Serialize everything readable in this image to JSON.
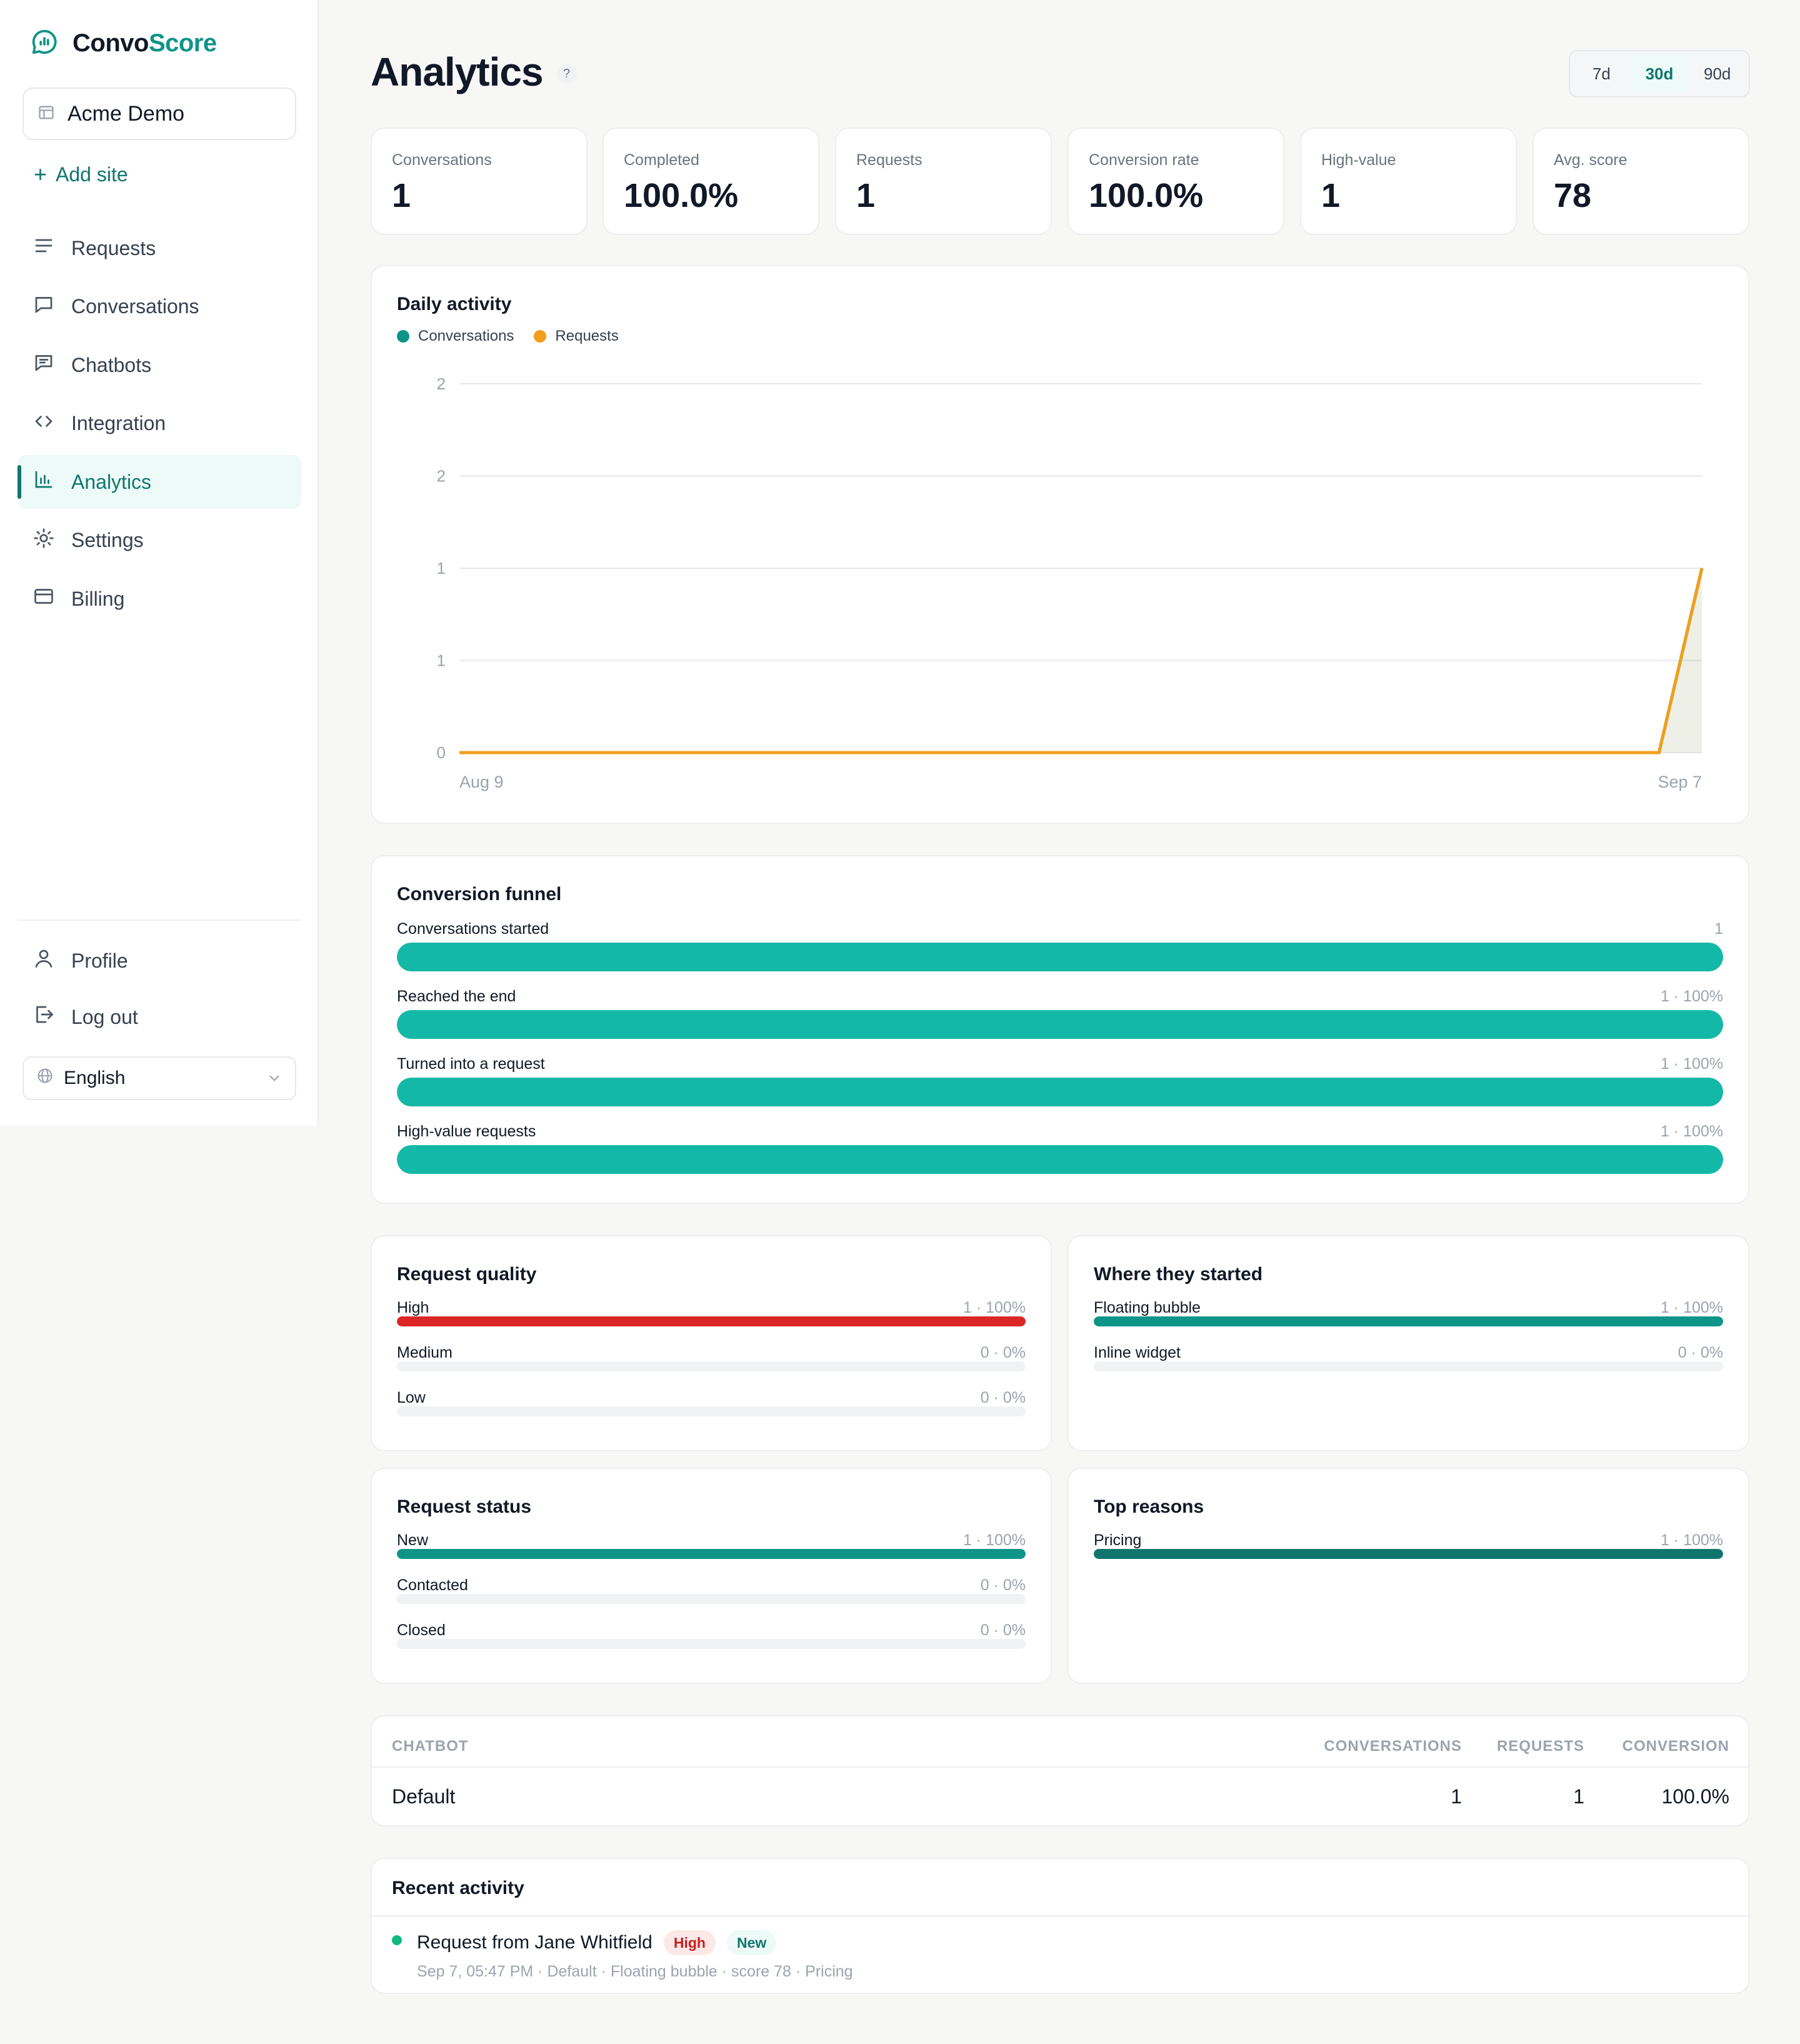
{
  "app": {
    "brand_part1": "Convo",
    "brand_part2": "Score",
    "brand_color": "#0f9488"
  },
  "sidebar": {
    "site": "Acme Demo",
    "add_site": "Add site",
    "items": [
      {
        "label": "Requests",
        "icon": "list-icon"
      },
      {
        "label": "Conversations",
        "icon": "message-icon"
      },
      {
        "label": "Chatbots",
        "icon": "chatbot-icon"
      },
      {
        "label": "Integration",
        "icon": "code-icon"
      },
      {
        "label": "Analytics",
        "icon": "bar-chart-icon",
        "active": true
      },
      {
        "label": "Settings",
        "icon": "gear-icon"
      },
      {
        "label": "Billing",
        "icon": "credit-card-icon"
      }
    ],
    "bottom_items": [
      {
        "label": "Profile",
        "icon": "user-icon"
      },
      {
        "label": "Log out",
        "icon": "logout-icon"
      }
    ],
    "language": "English"
  },
  "header": {
    "title": "Analytics",
    "help": "?",
    "ranges": [
      "7d",
      "30d",
      "90d"
    ],
    "active_range": "30d"
  },
  "stats": [
    {
      "label": "Conversations",
      "value": "1"
    },
    {
      "label": "Completed",
      "value": "100.0%"
    },
    {
      "label": "Requests",
      "value": "1"
    },
    {
      "label": "Conversion rate",
      "value": "100.0%"
    },
    {
      "label": "High-value",
      "value": "1"
    },
    {
      "label": "Avg. score",
      "value": "78"
    }
  ],
  "daily_activity": {
    "title": "Daily activity",
    "legend": [
      "Conversations",
      "Requests"
    ]
  },
  "chart_data": {
    "type": "line",
    "title": "Daily activity",
    "xlabel": "",
    "ylabel": "",
    "x_tick_labels": [
      "Aug 9",
      "Sep 7"
    ],
    "y_tick_labels": [
      "0",
      "1",
      "1",
      "2",
      "2"
    ],
    "ylim": [
      0,
      2
    ],
    "grid": true,
    "legend": "top-left",
    "series": [
      {
        "name": "Conversations",
        "color": "#0f9488",
        "values": [
          0,
          0,
          0,
          0,
          0,
          0,
          0,
          0,
          0,
          0,
          0,
          0,
          0,
          0,
          0,
          0,
          0,
          0,
          0,
          0,
          0,
          0,
          0,
          0,
          0,
          0,
          0,
          0,
          0,
          1
        ]
      },
      {
        "name": "Requests",
        "color": "#f29e1a",
        "values": [
          0,
          0,
          0,
          0,
          0,
          0,
          0,
          0,
          0,
          0,
          0,
          0,
          0,
          0,
          0,
          0,
          0,
          0,
          0,
          0,
          0,
          0,
          0,
          0,
          0,
          0,
          0,
          0,
          0,
          1
        ]
      }
    ]
  },
  "funnel": {
    "title": "Conversion funnel",
    "rows": [
      {
        "label": "Conversations started",
        "value": "1",
        "fraction": 1
      },
      {
        "label": "Reached the end",
        "value": "1 · 100%",
        "fraction": 1
      },
      {
        "label": "Turned into a request",
        "value": "1 · 100%",
        "fraction": 1
      },
      {
        "label": "High-value requests",
        "value": "1 · 100%",
        "fraction": 1
      }
    ],
    "color": "#14b8a6"
  },
  "request_quality": {
    "title": "Request quality",
    "rows": [
      {
        "label": "High",
        "value": "1 · 100%",
        "fraction": 1,
        "color": "#dc2626"
      },
      {
        "label": "Medium",
        "value": "0 · 0%",
        "fraction": 0,
        "color": "#f59e0b"
      },
      {
        "label": "Low",
        "value": "0 · 0%",
        "fraction": 0,
        "color": "#9ca3af"
      }
    ]
  },
  "where_started": {
    "title": "Where they started",
    "rows": [
      {
        "label": "Floating bubble",
        "value": "1 · 100%",
        "fraction": 1,
        "color": "#0f9488"
      },
      {
        "label": "Inline widget",
        "value": "0 · 0%",
        "fraction": 0,
        "color": "#0f9488"
      }
    ]
  },
  "request_status": {
    "title": "Request status",
    "rows": [
      {
        "label": "New",
        "value": "1 · 100%",
        "fraction": 1,
        "color": "#0f9488"
      },
      {
        "label": "Contacted",
        "value": "0 · 0%",
        "fraction": 0,
        "color": "#0f9488"
      },
      {
        "label": "Closed",
        "value": "0 · 0%",
        "fraction": 0,
        "color": "#0f9488"
      }
    ]
  },
  "top_reasons": {
    "title": "Top reasons",
    "rows": [
      {
        "label": "Pricing",
        "value": "1 · 100%",
        "fraction": 1,
        "color": "#0f766e"
      }
    ]
  },
  "chatbot_table": {
    "headers": [
      "CHATBOT",
      "CONVERSATIONS",
      "REQUESTS",
      "CONVERSION"
    ],
    "rows": [
      {
        "chatbot": "Default",
        "conversations": "1",
        "requests": "1",
        "conversion": "100.0%"
      }
    ]
  },
  "recent_activity": {
    "title": "Recent activity",
    "items": [
      {
        "title": "Request from Jane Whitfield",
        "badges": [
          "High",
          "New"
        ],
        "meta": "Sep 7, 05:47 PM · Default · Floating bubble · score 78 · Pricing"
      }
    ]
  }
}
